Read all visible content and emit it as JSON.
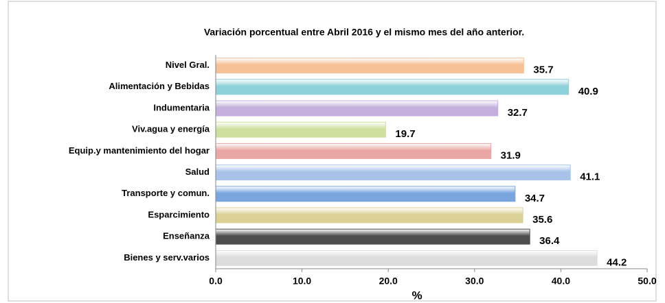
{
  "chart_data": {
    "type": "barh",
    "title": "Variación porcentual entre Abril 2016 y el mismo  mes del año anterior.",
    "xlabel": "%",
    "categories": [
      "Nivel Gral.",
      "Alimentación y Bebidas",
      "Indumentaria",
      "Viv.agua y energía",
      "Equip.y mantenimiento del hogar",
      "Salud",
      "Transporte y comun.",
      "Esparcimiento",
      "Enseñanza",
      "Bienes y serv.varios"
    ],
    "values": [
      35.7,
      40.9,
      32.7,
      19.7,
      31.9,
      41.1,
      34.7,
      35.6,
      36.4,
      44.2
    ],
    "colors": [
      "#f7c197",
      "#8dd1db",
      "#c4aedb",
      "#cde0a0",
      "#eaa6a4",
      "#a8c2ea",
      "#79a5df",
      "#dbd197",
      "#4d4d4d",
      "#dcdcdc"
    ],
    "xlim": [
      0,
      50
    ],
    "xticks": [
      {
        "value": 0,
        "label": "0.0"
      },
      {
        "value": 10,
        "label": "10.0"
      },
      {
        "value": 20,
        "label": "20.0"
      },
      {
        "value": 30,
        "label": "30.0"
      },
      {
        "value": 40,
        "label": "40.0"
      },
      {
        "value": 50,
        "label": "50.0"
      }
    ],
    "grid": false
  }
}
